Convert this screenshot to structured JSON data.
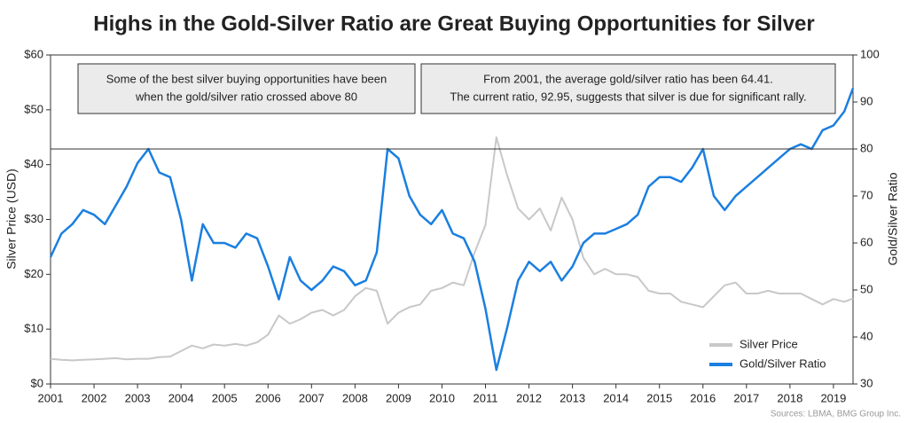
{
  "chart_data": {
    "type": "line",
    "title": "Highs in the Gold-Silver Ratio are Great Buying Opportunities for Silver",
    "ylabel": "Silver Price (USD)",
    "y2label": "Gold/Silver Ratio",
    "source": "Sources: LBMA, BMG Group Inc.",
    "annotations": [
      [
        "Some of the best silver buying opportunities have been",
        "when the gold/silver ratio crossed above 80"
      ],
      [
        "From 2001, the average gold/silver ratio has been 64.41.",
        "The current ratio, 92.95, suggests that silver is due for significant rally."
      ]
    ],
    "hline_y2": 80,
    "x": [
      2001,
      2001.25,
      2001.5,
      2001.75,
      2002,
      2002.25,
      2002.5,
      2002.75,
      2003,
      2003.25,
      2003.5,
      2003.75,
      2004,
      2004.25,
      2004.5,
      2004.75,
      2005,
      2005.25,
      2005.5,
      2005.75,
      2006,
      2006.25,
      2006.5,
      2006.75,
      2007,
      2007.25,
      2007.5,
      2007.75,
      2008,
      2008.25,
      2008.5,
      2008.75,
      2009,
      2009.25,
      2009.5,
      2009.75,
      2010,
      2010.25,
      2010.5,
      2010.75,
      2011,
      2011.25,
      2011.5,
      2011.75,
      2012,
      2012.25,
      2012.5,
      2012.75,
      2013,
      2013.25,
      2013.5,
      2013.75,
      2014,
      2014.25,
      2014.5,
      2014.75,
      2015,
      2015.25,
      2015.5,
      2015.75,
      2016,
      2016.25,
      2016.5,
      2016.75,
      2017,
      2017.25,
      2017.5,
      2017.75,
      2018,
      2018.25,
      2018.5,
      2018.75,
      2019,
      2019.25,
      2019.45
    ],
    "series": [
      {
        "name": "Silver Price",
        "color": "#c8c8c8",
        "axis": "y",
        "values": [
          4.6,
          4.4,
          4.3,
          4.4,
          4.5,
          4.6,
          4.7,
          4.5,
          4.6,
          4.6,
          4.9,
          5.0,
          6.0,
          7.0,
          6.5,
          7.2,
          7.0,
          7.3,
          7.0,
          7.6,
          9.0,
          12.5,
          11.0,
          11.8,
          13.0,
          13.5,
          12.5,
          13.5,
          16.0,
          17.5,
          17.0,
          11.0,
          13.0,
          14.0,
          14.5,
          17.0,
          17.5,
          18.5,
          18.0,
          24.0,
          29.0,
          45.0,
          38.0,
          32.0,
          30.0,
          32.0,
          28.0,
          34.0,
          30.0,
          23.0,
          20.0,
          21.0,
          20.0,
          20.0,
          19.5,
          17.0,
          16.5,
          16.5,
          15.0,
          14.5,
          14.0,
          16.0,
          18.0,
          18.5,
          16.5,
          16.5,
          17.0,
          16.5,
          16.5,
          16.5,
          15.5,
          14.5,
          15.5,
          15.0,
          15.6
        ]
      },
      {
        "name": "Gold/Silver Ratio",
        "color": "#1a7fe0",
        "axis": "y2",
        "values": [
          57,
          62,
          64,
          67,
          66,
          64,
          68,
          72,
          77,
          80,
          75,
          74,
          65,
          52,
          64,
          60,
          60,
          59,
          62,
          61,
          55,
          48,
          57,
          52,
          50,
          52,
          55,
          54,
          51,
          52,
          58,
          80,
          78,
          70,
          66,
          64,
          67,
          62,
          61,
          56,
          46,
          33,
          42,
          52,
          56,
          54,
          56,
          52,
          55,
          60,
          62,
          62,
          63,
          64,
          66,
          72,
          74,
          74,
          73,
          76,
          80,
          70,
          67,
          70,
          72,
          74,
          76,
          78,
          80,
          81,
          80,
          84,
          85,
          88,
          92.95
        ]
      }
    ],
    "xlim": [
      2001,
      2019.45
    ],
    "xticks": [
      2001,
      2002,
      2003,
      2004,
      2005,
      2006,
      2007,
      2008,
      2009,
      2010,
      2011,
      2012,
      2013,
      2014,
      2015,
      2016,
      2017,
      2018,
      2019
    ],
    "ylim": [
      0,
      60
    ],
    "yticks": [
      {
        "value": 0,
        "label": "$0"
      },
      {
        "value": 10,
        "label": "$10"
      },
      {
        "value": 20,
        "label": "$20"
      },
      {
        "value": 30,
        "label": "$30"
      },
      {
        "value": 40,
        "label": "$40"
      },
      {
        "value": 50,
        "label": "$50"
      },
      {
        "value": 60,
        "label": "$60"
      }
    ],
    "y2lim": [
      30,
      100
    ],
    "y2ticks": [
      30,
      40,
      50,
      60,
      70,
      80,
      90,
      100
    ],
    "legend": "lower right"
  }
}
